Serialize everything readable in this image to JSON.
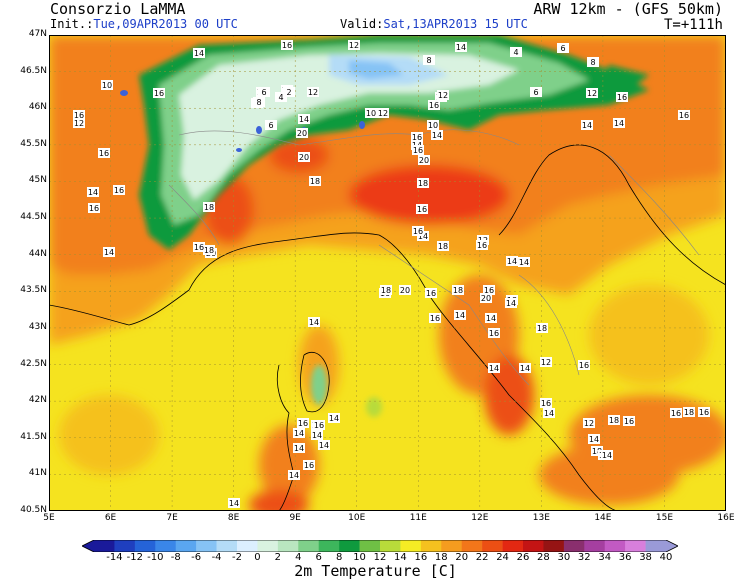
{
  "header": {
    "org": "Consorzio LaMMA",
    "model": "ARW 12km - (GFS 50km)",
    "init_prefix": "Init.:",
    "init_value": "Tue,09APR2013 00 UTC",
    "valid_prefix": "Valid:",
    "valid_value": "Sat,13APR2013 15 UTC",
    "timestep": "T=+111h"
  },
  "axes": {
    "lat_labels": [
      "47N",
      "46.5N",
      "46N",
      "45.5N",
      "45N",
      "44.5N",
      "44N",
      "43.5N",
      "43N",
      "42.5N",
      "42N",
      "41.5N",
      "41N",
      "40.5N"
    ],
    "lon_labels": [
      "5E",
      "6E",
      "7E",
      "8E",
      "9E",
      "10E",
      "11E",
      "12E",
      "13E",
      "14E",
      "15E",
      "16E"
    ]
  },
  "colorbar": {
    "title": "2m Temperature [C]",
    "labels": [
      "-14",
      "-12",
      "-10",
      "-8",
      "-6",
      "-4",
      "-2",
      "0",
      "2",
      "4",
      "6",
      "8",
      "10",
      "12",
      "14",
      "16",
      "18",
      "20",
      "22",
      "24",
      "26",
      "28",
      "30",
      "32",
      "34",
      "36",
      "38",
      "40"
    ],
    "colors": [
      "#1a1a9a",
      "#1f3fbf",
      "#2563d8",
      "#3a86e8",
      "#5aa6f0",
      "#86c3f5",
      "#b4dcf7",
      "#dcefff",
      "#d9f2e0",
      "#b9e6c0",
      "#7fd08a",
      "#3db65c",
      "#0f9a3e",
      "#6fc045",
      "#b8db3a",
      "#f5ec24",
      "#f5c11f",
      "#f59c1f",
      "#f2761a",
      "#ec4f14",
      "#e32812",
      "#c41414",
      "#961414",
      "#8a2f6e",
      "#a53fa0",
      "#c25ac3",
      "#d87fdc",
      "#9a9ad8"
    ]
  },
  "map": {
    "contour_labels": [
      "12",
      "2",
      "4",
      "4",
      "14",
      "16",
      "10",
      "12",
      "8",
      "4",
      "6",
      "8",
      "16",
      "12",
      "16",
      "16",
      "16",
      "14",
      "2",
      "4",
      "6",
      "8",
      "12",
      "14",
      "10",
      "12",
      "16",
      "10",
      "14",
      "20",
      "6",
      "8",
      "10",
      "12",
      "6",
      "12",
      "14",
      "14",
      "16",
      "16",
      "18",
      "20",
      "18",
      "16",
      "14",
      "20",
      "20",
      "18",
      "16",
      "14",
      "16",
      "18",
      "16",
      "14",
      "12",
      "14",
      "16",
      "14",
      "18",
      "16",
      "16",
      "16",
      "14",
      "20",
      "16",
      "18",
      "14",
      "16",
      "18",
      "18",
      "20",
      "14",
      "16",
      "18",
      "16",
      "12",
      "14",
      "14",
      "14",
      "16",
      "14",
      "12",
      "14",
      "18",
      "16",
      "14",
      "18",
      "16",
      "16",
      "18",
      "16",
      "14",
      "14",
      "14",
      "14",
      "16",
      "16",
      "14",
      "14",
      "16",
      "14",
      "16",
      "14",
      "16",
      "12",
      "14",
      "10"
    ]
  }
}
